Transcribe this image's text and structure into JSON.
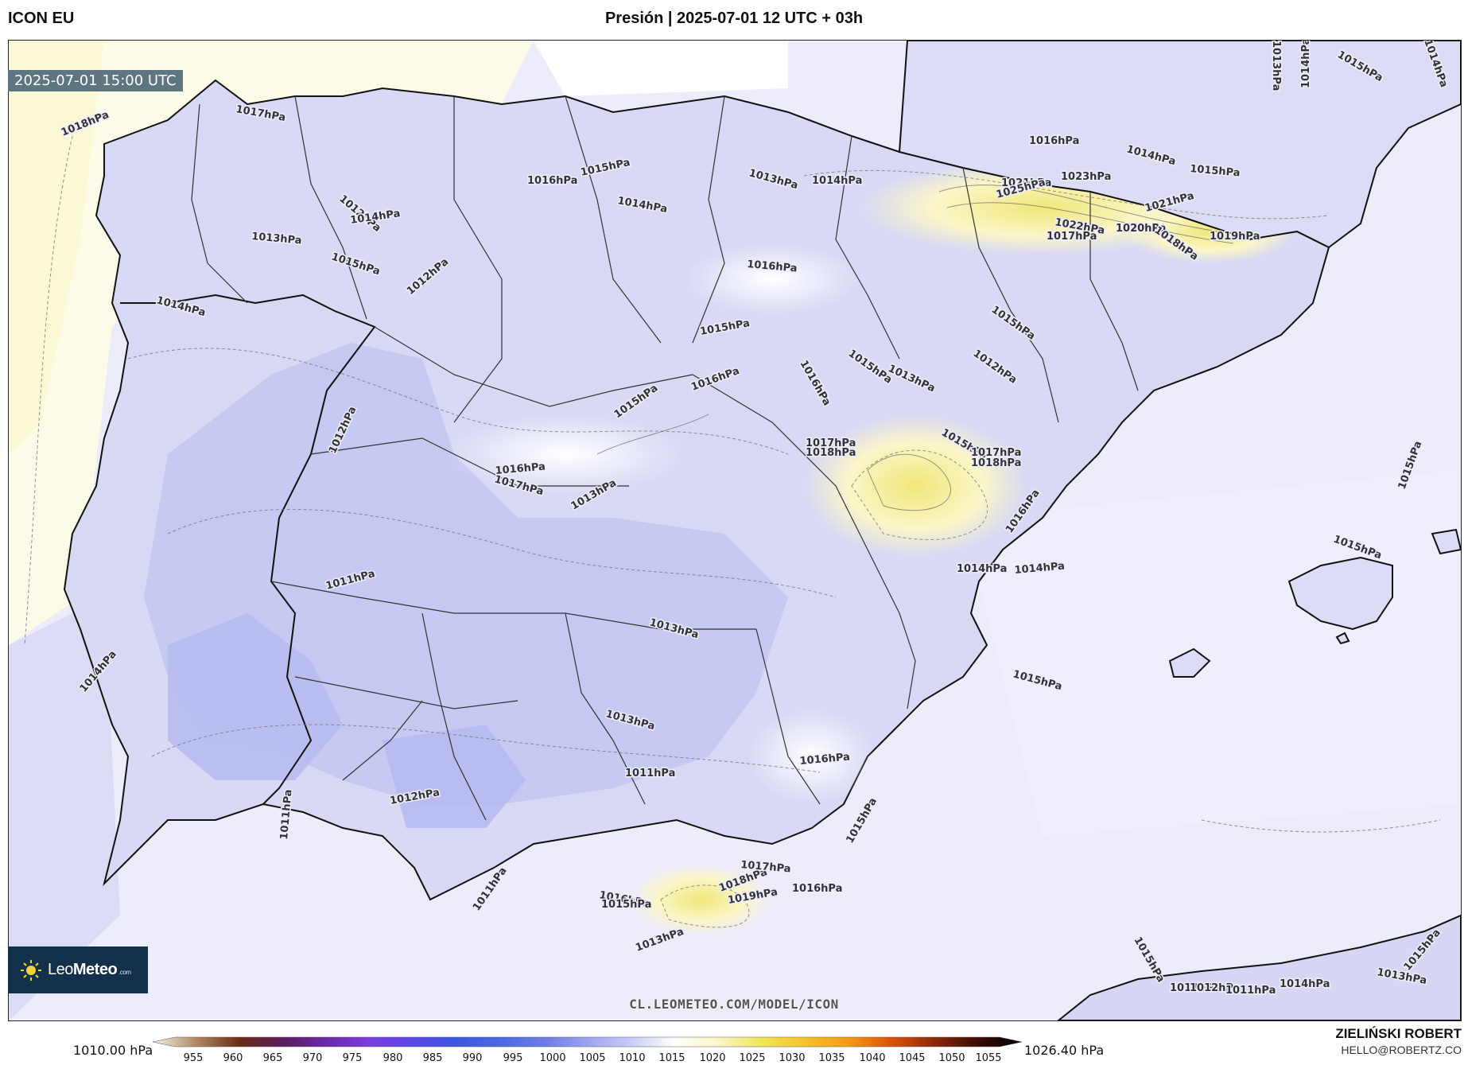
{
  "header": {
    "model": "ICON EU",
    "title": "Presión | 2025-07-01 12 UTC + 03h"
  },
  "map": {
    "valid_time": "2025-07-01 15:00 UTC",
    "watermark": "CL.LEOMETEO.COM/MODEL/ICON",
    "logo": {
      "brand_light": "Leo",
      "brand_bold": "Meteo",
      "domain": ".com"
    },
    "isobar_labels": [
      "1018hPa",
      "1017hPa",
      "1012hPa",
      "1014hPa",
      "1013hPa",
      "1015hPa",
      "1014hPa",
      "1016hPa",
      "1015hPa",
      "1013hPa",
      "1014hPa",
      "1014hPa",
      "1012hPa",
      "1016hPa",
      "1016hPa",
      "1015hPa",
      "1015hPa",
      "1016hPa",
      "1012hPa",
      "1016hPa",
      "1017hPa",
      "1013hPa",
      "1011hPa",
      "1013hPa",
      "1014hPa",
      "1013hPa",
      "1011hPa",
      "1012hPa",
      "1011hPa",
      "1011hPa",
      "1016hPa",
      "1017hPa",
      "1018hPa",
      "1015hPa",
      "1013hPa",
      "1012hPa",
      "1015hPa",
      "1017hPa",
      "1018hPa",
      "1016hPa",
      "1014hPa",
      "1014hPa",
      "1015hPa",
      "1015hPa",
      "1015hPa",
      "1016hPa",
      "1014hPa",
      "1015hPa",
      "1023hPa",
      "1021hPa",
      "1025hPa",
      "1022hPa",
      "1020hPa",
      "1018hPa",
      "1017hPa",
      "1019hPa",
      "1021hPa",
      "1014hPa",
      "1015hPa",
      "1013hPa",
      "1014hPa",
      "1015hPa",
      "1015hPa",
      "1015hPa",
      "1013hPa",
      "1012hPa",
      "1011hPa",
      "1014hPa",
      "1013hPa",
      "1015hPa",
      "1016hPa",
      "1018hPa",
      "1019hPa",
      "1017hPa",
      "1016hPa",
      "1015hPa",
      "1013hPa"
    ]
  },
  "colorbar": {
    "min_label": "1010.00 hPa",
    "max_label": "1026.40 hPa",
    "ticks": [
      "955",
      "960",
      "965",
      "970",
      "975",
      "980",
      "985",
      "990",
      "995",
      "1000",
      "1005",
      "1010",
      "1015",
      "1020",
      "1025",
      "1030",
      "1035",
      "1040",
      "1045",
      "1050",
      "1055"
    ],
    "colors": [
      "#f5f1ec",
      "#b08a63",
      "#6b2a14",
      "#5a1b5e",
      "#6a2aa8",
      "#7a3ee0",
      "#5a48e8",
      "#3a58e0",
      "#4a6ae0",
      "#6c7ce6",
      "#9da4ee",
      "#c9ccf6",
      "#ffffff",
      "#fbf6c8",
      "#f1e65a",
      "#f6c32a",
      "#f49a1a",
      "#d9530a",
      "#8a2a0a",
      "#3a0a04",
      "#000000"
    ]
  },
  "author": {
    "name": "ZIELIŃSKI ROBERT",
    "email": "HELLO@ROBERTZ.CO"
  }
}
